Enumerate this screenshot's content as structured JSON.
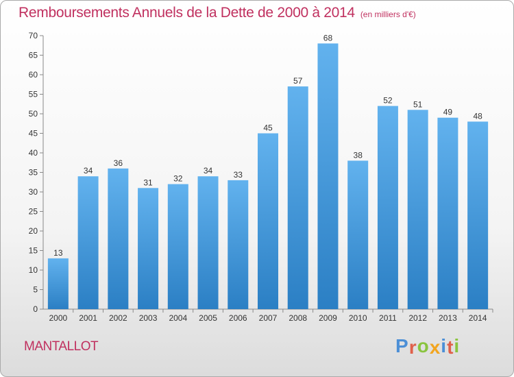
{
  "header": {
    "title": "Remboursements Annuels de la Dette de 2000 à 2014",
    "subtitle": "(en milliers d'€)"
  },
  "footer": {
    "town": "MANTALLOT",
    "logo": "Proxiti"
  },
  "colors": {
    "title": "#c0305f",
    "bar_top": "#62b2ee",
    "bar_bottom": "#2b7fc4",
    "logo_letters": [
      "#4c8fd6",
      "#e0604a",
      "#8ac43f",
      "#f2a51f",
      "#4c8fd6",
      "#e0604a",
      "#8ac43f"
    ]
  },
  "chart_data": {
    "type": "bar",
    "title": "Remboursements Annuels de la Dette de 2000 à 2014",
    "subtitle": "(en milliers d'€)",
    "xlabel": "",
    "ylabel": "",
    "categories": [
      "2000",
      "2001",
      "2002",
      "2003",
      "2004",
      "2005",
      "2006",
      "2007",
      "2008",
      "2009",
      "2010",
      "2011",
      "2012",
      "2013",
      "2014"
    ],
    "values": [
      13,
      34,
      36,
      31,
      32,
      34,
      33,
      45,
      57,
      68,
      38,
      52,
      51,
      49,
      48
    ],
    "ylim": [
      0,
      70
    ],
    "yticks": [
      0,
      5,
      10,
      15,
      20,
      25,
      30,
      35,
      40,
      45,
      50,
      55,
      60,
      65,
      70
    ],
    "grid": false,
    "legend": "none"
  }
}
